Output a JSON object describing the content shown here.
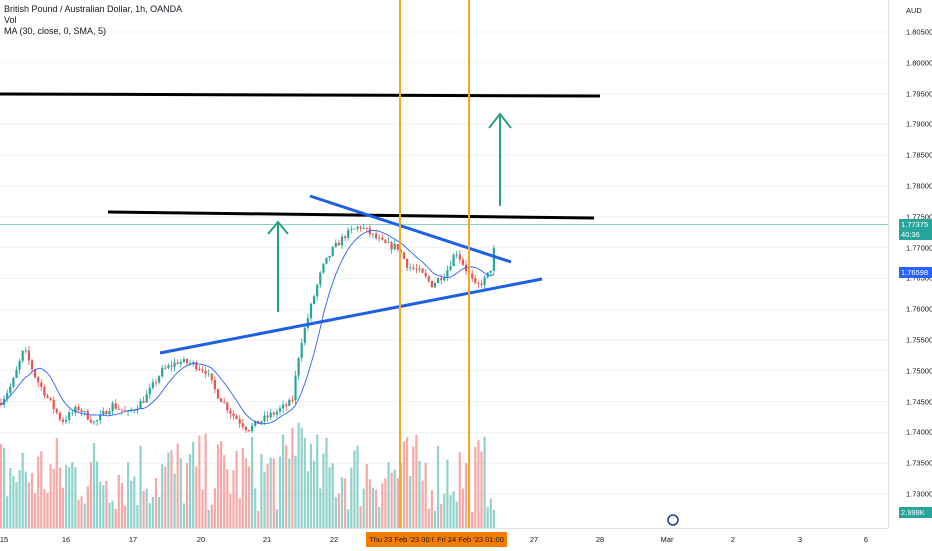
{
  "legend": {
    "symbol": "British Pound / Australian Dollar, 1h, OANDA",
    "volume": "Vol",
    "ma": "MA (30, close, 0, SMA, 5)"
  },
  "price_axis": {
    "unit": "AUD",
    "ticks": [
      "1.80500",
      "1.80000",
      "1.79500",
      "1.79000",
      "1.78500",
      "1.78000",
      "1.77500",
      "1.77000",
      "1.76500",
      "1.76000",
      "1.75500",
      "1.75000",
      "1.74500",
      "1.74000",
      "1.73500",
      "1.73000"
    ],
    "last_price": "1.77375",
    "countdown": "40:36",
    "ma_value": "1.76598",
    "volume_value": "2.998K"
  },
  "time_axis": {
    "ticks": [
      "15",
      "16",
      "17",
      "20",
      "21",
      "22",
      "23",
      "24",
      "27",
      "28",
      "Mar",
      "2",
      "3",
      "6"
    ],
    "cursor_labels": [
      "Thu 23 Feb '23   00:00",
      "Fri 24 Feb '23   01:00"
    ]
  },
  "colors": {
    "up": "#26a69a",
    "down": "#ef5350",
    "ma": "#2962ff",
    "trend": "#1e5fe6",
    "level": "#000000",
    "cursor": "#f5a623",
    "arrow": "#26a17b"
  },
  "icons": {
    "logo": "tradingview-logo-icon"
  }
}
